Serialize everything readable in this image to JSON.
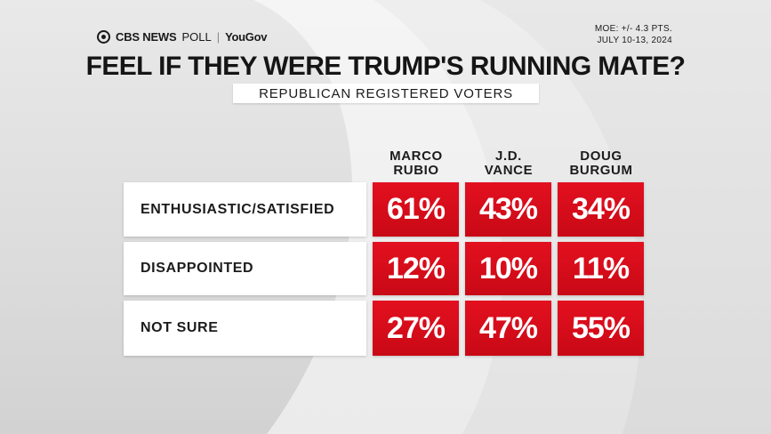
{
  "brand": {
    "cbs": "CBS NEWS",
    "poll": "POLL",
    "yougov": "YouGov"
  },
  "moe": {
    "line1": "MOE: +/- 4.3 PTS.",
    "line2": "JULY 10-13, 2024"
  },
  "colors": {
    "cell_red": "#d80c1a",
    "label_bg": "#ffffff",
    "text_dark": "#1c1c1c"
  },
  "chart_data": {
    "type": "table",
    "title": "FEEL IF THEY WERE TRUMP'S RUNNING MATE?",
    "subtitle": "REPUBLICAN REGISTERED VOTERS",
    "columns": [
      {
        "line1": "MARCO",
        "line2": "RUBIO"
      },
      {
        "line1": "J.D.",
        "line2": "VANCE"
      },
      {
        "line1": "DOUG",
        "line2": "BURGUM"
      }
    ],
    "rows": [
      {
        "label": "ENTHUSIASTIC/SATISFIED",
        "values": [
          61,
          43,
          34
        ],
        "display": [
          "61%",
          "43%",
          "34%"
        ]
      },
      {
        "label": "DISAPPOINTED",
        "values": [
          12,
          10,
          11
        ],
        "display": [
          "12%",
          "10%",
          "11%"
        ]
      },
      {
        "label": "NOT SURE",
        "values": [
          27,
          47,
          55
        ],
        "display": [
          "27%",
          "47%",
          "55%"
        ]
      }
    ]
  }
}
